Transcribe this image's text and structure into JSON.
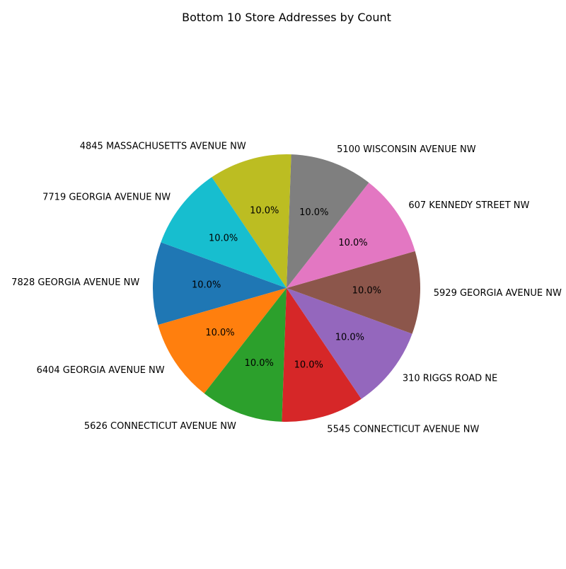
{
  "chart_data": {
    "type": "pie",
    "title": "Bottom 10 Store Addresses by Count",
    "categories": [
      "7828 GEORGIA AVENUE NW",
      "6404 GEORGIA AVENUE NW",
      "5626 CONNECTICUT AVENUE NW",
      "5545 CONNECTICUT AVENUE NW",
      "310 RIGGS ROAD NE",
      "5929 GEORGIA AVENUE NW",
      "607 KENNEDY STREET NW",
      "5100 WISCONSIN AVENUE NW",
      "4845 MASSACHUSETTS AVENUE NW",
      "7719 GEORGIA AVENUE NW"
    ],
    "values": [
      1,
      1,
      1,
      1,
      1,
      1,
      1,
      1,
      1,
      1
    ],
    "percent_labels": [
      "10.0%",
      "10.0%",
      "10.0%",
      "10.0%",
      "10.0%",
      "10.0%",
      "10.0%",
      "10.0%",
      "10.0%",
      "10.0%"
    ],
    "colors": [
      "#1f77b4",
      "#ff7f0e",
      "#2ca02c",
      "#d62728",
      "#9467bd",
      "#8c564b",
      "#e377c2",
      "#7f7f7f",
      "#bcbd22",
      "#17becf"
    ],
    "start_angle_deg": 160,
    "direction": "counterclockwise",
    "legend": "none"
  }
}
